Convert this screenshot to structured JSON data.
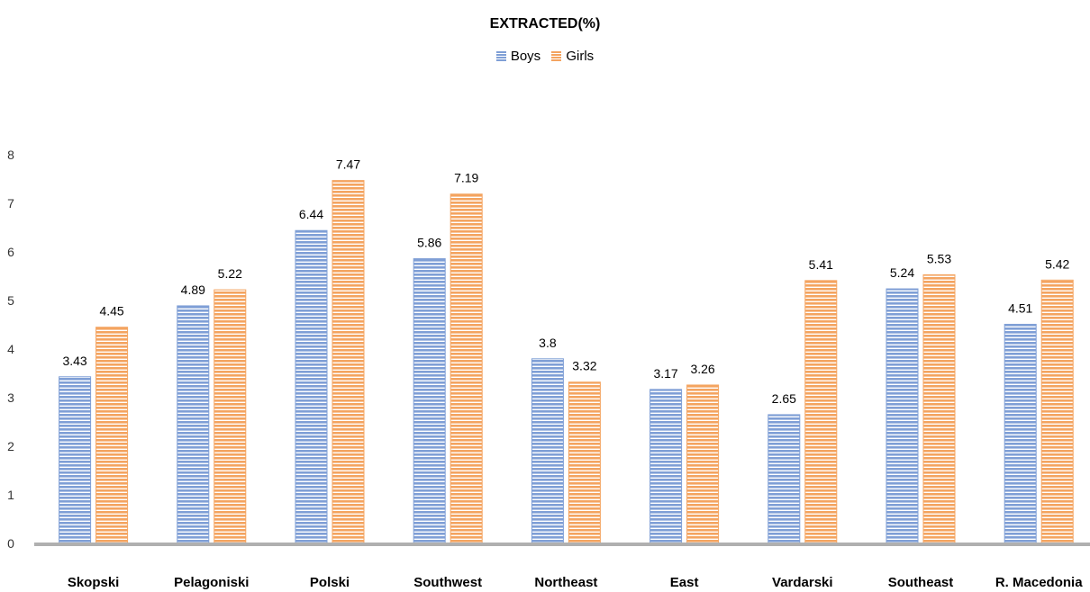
{
  "chart_data": {
    "type": "bar",
    "title": "EXTRACTED(%)",
    "xlabel": "",
    "ylabel": "",
    "ylim": [
      0,
      8
    ],
    "yticks": [
      0,
      1,
      2,
      3,
      4,
      5,
      6,
      7,
      8
    ],
    "grid": false,
    "legend_position": "top",
    "categories": [
      "Skopski",
      "Pelagoniski",
      "Polski",
      "Southwest",
      "Northeast",
      "East",
      "Vardarski",
      "Southeast",
      "R. Macedonia"
    ],
    "series": [
      {
        "name": "Boys",
        "color": "#7f9fd6",
        "values": [
          3.43,
          4.89,
          6.44,
          5.86,
          3.8,
          3.17,
          2.65,
          5.24,
          4.51
        ]
      },
      {
        "name": "Girls",
        "color": "#f4a460",
        "values": [
          4.45,
          5.22,
          7.47,
          7.19,
          3.32,
          3.26,
          5.41,
          5.53,
          5.42
        ]
      }
    ]
  }
}
